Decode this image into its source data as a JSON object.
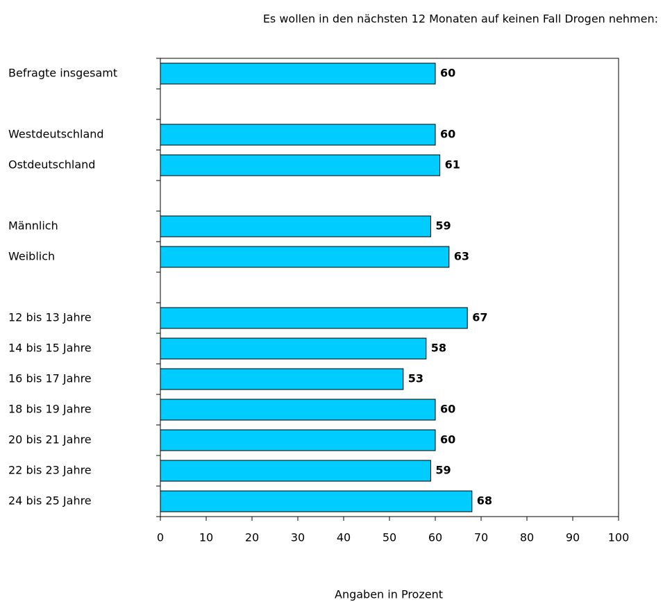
{
  "chart_data": {
    "type": "barh",
    "title": "Es wollen in den nächsten 12 Monaten auf keinen Fall Drogen nehmen:",
    "x_label": "Angaben in Prozent",
    "categories": [
      "Befragte insgesamt",
      null,
      "Westdeutschland",
      "Ostdeutschland",
      null,
      "Männlich",
      "Weiblich",
      null,
      "12 bis 13 Jahre",
      "14 bis 15 Jahre",
      "16 bis 17 Jahre",
      "18 bis 19 Jahre",
      "20 bis 21 Jahre",
      "22 bis 23 Jahre",
      "24 bis 25 Jahre"
    ],
    "values": [
      60,
      null,
      60,
      61,
      null,
      59,
      63,
      null,
      67,
      58,
      53,
      60,
      60,
      59,
      68
    ],
    "color": "#00ccff",
    "xlim": [
      0,
      100
    ],
    "xticks": [
      0,
      10,
      20,
      30,
      40,
      50,
      60,
      70,
      80,
      90,
      100
    ]
  }
}
